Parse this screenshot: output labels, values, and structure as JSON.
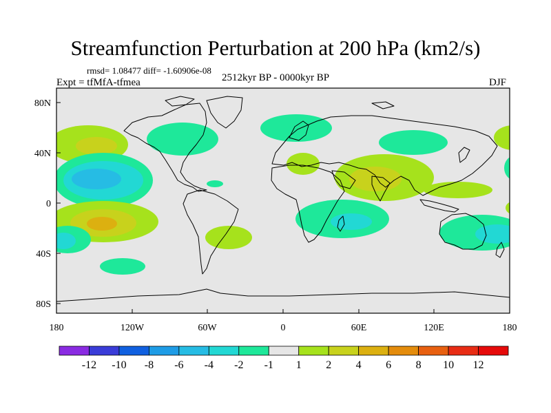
{
  "figure": {
    "title": "Streamfunction Perturbation at 200 hPa (km2/s)",
    "stats": "rmsd= 1.08477 diff= -1.60906e-08",
    "experiment": "Expt = tfMfA-tfmea",
    "period": "2512kyr BP - 0000kyr BP",
    "season": "DJF"
  },
  "axes": {
    "lat_labels": [
      "80N",
      "40N",
      "0",
      "40S",
      "80S"
    ],
    "lon_labels": [
      "180",
      "120W",
      "60W",
      "0",
      "60E",
      "120E",
      "180"
    ]
  },
  "colorbar": {
    "labels": [
      "-12",
      "-10",
      "-8",
      "-6",
      "-4",
      "-2",
      "-1",
      "1",
      "2",
      "4",
      "6",
      "8",
      "10",
      "12"
    ],
    "colors": [
      "#8a2be2",
      "#3a3cd8",
      "#1060e0",
      "#1e9ce6",
      "#26bce4",
      "#22d8d4",
      "#1ee89a",
      "#e6e6e6",
      "#a6e21c",
      "#c8d21c",
      "#dcb010",
      "#e48c0c",
      "#e86010",
      "#e82c14",
      "#e60a0a"
    ]
  },
  "colors": {
    "background": "#e6e6e6",
    "coast": "#000000"
  }
}
